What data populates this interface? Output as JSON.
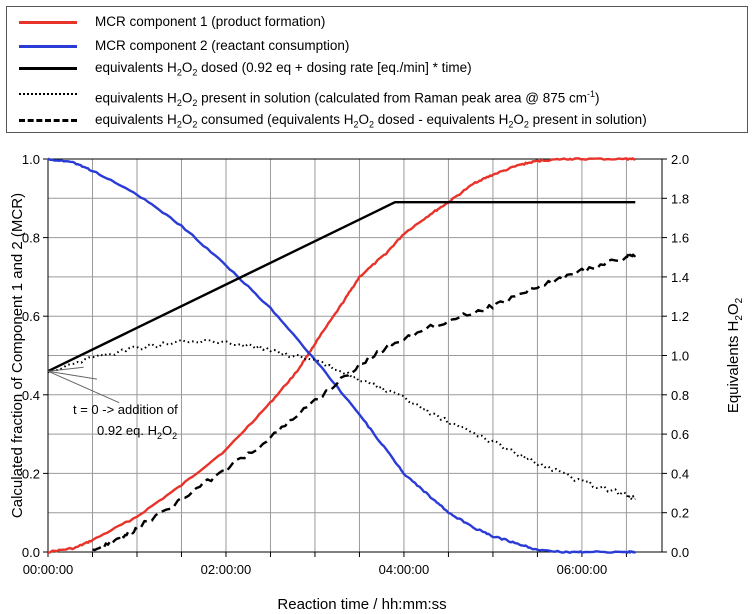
{
  "legend": {
    "items": [
      {
        "style": "solid-red",
        "color": "#e8332b",
        "parts": [
          "MCR component 1 (product formation)"
        ]
      },
      {
        "style": "solid-blue",
        "color": "#2a3bd6",
        "parts": [
          "MCR component 2 (reactant consumption)"
        ]
      },
      {
        "style": "solid-black",
        "color": "#000000",
        "parts": [
          "equivalents H",
          "2",
          "O",
          "2",
          " dosed (0.92 eq + dosing rate [eq./min] * time)"
        ]
      },
      {
        "style": "dotted-black",
        "color": "#000000",
        "parts": [
          "equivalents H",
          "2",
          "O",
          "2",
          " present in solution (calculated from Raman peak area @ 875 cm",
          "-1",
          ")"
        ]
      },
      {
        "style": "dashed-black",
        "color": "#000000",
        "parts": [
          "equivalents H",
          "2",
          "O",
          "2",
          " consumed (equivalents H",
          "2",
          "O",
          "2",
          " dosed - equivalents H",
          "2",
          "O",
          "2",
          " present in solution)"
        ]
      }
    ]
  },
  "chart_data": {
    "type": "line",
    "xlabel": "Reaction time / hh:mm:ss",
    "ylabel_left": "Calculated fraction of Component 1 and 2 (MCR)",
    "ylabel_right_parts": [
      "Equivalents H",
      "2",
      "O",
      "2"
    ],
    "x_unit": "hours",
    "xlim": [
      0,
      6.9
    ],
    "ylim_left": [
      0,
      1.0
    ],
    "ylim_right": [
      0,
      2.0
    ],
    "x_ticks": [
      {
        "value": 0,
        "label": "00:00:00"
      },
      {
        "value": 2,
        "label": "02:00:00"
      },
      {
        "value": 4,
        "label": "04:00:00"
      },
      {
        "value": 6,
        "label": "06:00:00"
      }
    ],
    "x_grid": [
      0,
      0.5,
      1,
      1.5,
      2,
      2.5,
      3,
      3.5,
      4,
      4.5,
      5,
      5.5,
      6,
      6.5
    ],
    "y_left_ticks": [
      "0.0",
      "0.2",
      "0.4",
      "0.6",
      "0.8",
      "1.0"
    ],
    "y_right_ticks": [
      "0.0",
      "0.2",
      "0.4",
      "0.6",
      "0.8",
      "1.0",
      "1.2",
      "1.4",
      "1.6",
      "1.8",
      "2.0"
    ],
    "grid": true,
    "annotation": {
      "line1": "t = 0 -> addition of",
      "line2_parts": [
        "0.92 eq. H",
        "2",
        "O",
        "2"
      ]
    },
    "series": [
      {
        "name": "MCR component 1 (product formation)",
        "axis": "left",
        "color": "#e8332b",
        "style": "solid",
        "x": [
          0,
          0.3,
          0.5,
          1.0,
          1.5,
          2.0,
          2.5,
          2.8,
          3.0,
          3.3,
          3.5,
          3.8,
          4.0,
          4.3,
          4.5,
          4.8,
          5.0,
          5.3,
          5.5,
          5.8,
          6.0,
          6.5,
          6.6
        ],
        "y": [
          0.0,
          0.01,
          0.03,
          0.09,
          0.17,
          0.26,
          0.38,
          0.46,
          0.53,
          0.63,
          0.7,
          0.76,
          0.81,
          0.86,
          0.89,
          0.94,
          0.96,
          0.985,
          0.995,
          1.0,
          1.0,
          1.0,
          1.0
        ]
      },
      {
        "name": "MCR component 2 (reactant consumption)",
        "axis": "left",
        "color": "#2a3bd6",
        "style": "solid",
        "x": [
          0,
          0.3,
          0.5,
          1.0,
          1.5,
          2.0,
          2.5,
          3.0,
          3.5,
          3.8,
          4.0,
          4.3,
          4.5,
          4.8,
          5.0,
          5.3,
          5.5,
          5.8,
          6.0,
          6.5,
          6.6
        ],
        "y": [
          1.0,
          0.99,
          0.97,
          0.91,
          0.83,
          0.73,
          0.62,
          0.49,
          0.35,
          0.26,
          0.2,
          0.14,
          0.1,
          0.06,
          0.04,
          0.02,
          0.005,
          0.0,
          0.0,
          0.0,
          0.0
        ]
      },
      {
        "name": "equivalents H2O2 dosed (0.92 eq + dosing rate [eq./min] * time)",
        "axis": "right",
        "color": "#000000",
        "style": "solid",
        "x": [
          0,
          3.9,
          6.6
        ],
        "y": [
          0.92,
          1.78,
          1.78
        ]
      },
      {
        "name": "equivalents H2O2 present in solution (calculated from Raman peak area @ 875 cm-1)",
        "axis": "right",
        "color": "#000000",
        "style": "dotted",
        "x": [
          0,
          0.5,
          1.0,
          1.5,
          2.0,
          2.5,
          3.0,
          3.5,
          4.0,
          4.5,
          5.0,
          5.5,
          6.0,
          6.5,
          6.6
        ],
        "y": [
          0.92,
          0.99,
          1.04,
          1.07,
          1.07,
          1.03,
          0.97,
          0.88,
          0.78,
          0.66,
          0.56,
          0.45,
          0.36,
          0.29,
          0.27
        ]
      },
      {
        "name": "equivalents H2O2 consumed (equivalents H2O2 dosed - equivalents H2O2 present in solution)",
        "axis": "right",
        "color": "#000000",
        "style": "dashed",
        "x": [
          0.5,
          0.8,
          1.0,
          1.5,
          2.0,
          2.5,
          3.0,
          3.5,
          3.9,
          4.5,
          5.0,
          5.5,
          6.0,
          6.5,
          6.6
        ],
        "y": [
          0.0,
          0.07,
          0.12,
          0.27,
          0.42,
          0.58,
          0.77,
          0.95,
          1.07,
          1.18,
          1.25,
          1.35,
          1.43,
          1.5,
          1.52
        ]
      }
    ]
  }
}
